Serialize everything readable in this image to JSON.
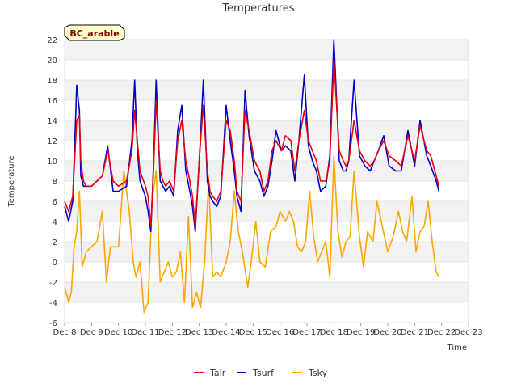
{
  "chart_data": {
    "type": "line",
    "title": "Temperatures",
    "xlabel": "Time",
    "ylabel": "Temperature",
    "site_label": "BC_arable",
    "xlim": [
      0,
      15
    ],
    "ylim": [
      -6,
      22
    ],
    "x_ticks": [
      {
        "x": 0,
        "label": "Dec 8"
      },
      {
        "x": 1,
        "label": "Dec 9"
      },
      {
        "x": 2,
        "label": "Dec 10"
      },
      {
        "x": 3,
        "label": "Dec 11"
      },
      {
        "x": 4,
        "label": "Dec 12"
      },
      {
        "x": 5,
        "label": "Dec 13"
      },
      {
        "x": 6,
        "label": "Dec 14"
      },
      {
        "x": 7,
        "label": "Dec 15"
      },
      {
        "x": 8,
        "label": "Dec 16"
      },
      {
        "x": 9,
        "label": "Dec 17"
      },
      {
        "x": 10,
        "label": "Dec 18"
      },
      {
        "x": 11,
        "label": "Dec 19"
      },
      {
        "x": 12,
        "label": "Dec 20"
      },
      {
        "x": 13,
        "label": "Dec 21"
      },
      {
        "x": 14,
        "label": "Dec 22"
      },
      {
        "x": 15,
        "label": "Dec 23"
      }
    ],
    "y_ticks": [
      -6,
      -4,
      -2,
      0,
      2,
      4,
      6,
      8,
      10,
      12,
      14,
      16,
      18,
      20,
      22
    ],
    "grid": "horizontal bands",
    "legend_position": "bottom",
    "series": [
      {
        "name": "Tair",
        "color": "#e8000b",
        "x": [
          0,
          0.15,
          0.3,
          0.45,
          0.55,
          0.6,
          0.7,
          0.8,
          1.0,
          1.2,
          1.4,
          1.6,
          1.8,
          2.0,
          2.3,
          2.5,
          2.6,
          2.7,
          2.8,
          3.0,
          3.1,
          3.2,
          3.3,
          3.4,
          3.55,
          3.65,
          3.75,
          3.9,
          4.05,
          4.2,
          4.35,
          4.5,
          4.65,
          4.75,
          4.85,
          5.05,
          5.15,
          5.3,
          5.4,
          5.5,
          5.65,
          5.8,
          6.0,
          6.15,
          6.3,
          6.4,
          6.55,
          6.7,
          6.85,
          7.05,
          7.25,
          7.4,
          7.55,
          7.7,
          7.85,
          8.05,
          8.2,
          8.4,
          8.55,
          8.7,
          8.9,
          9.05,
          9.2,
          9.35,
          9.5,
          9.7,
          9.85,
          10.0,
          10.2,
          10.35,
          10.45,
          10.55,
          10.75,
          10.95,
          11.15,
          11.35,
          11.5,
          11.65,
          11.85,
          12.05,
          12.3,
          12.5,
          12.75,
          13.0,
          13.2,
          13.45,
          13.6,
          13.8,
          13.9
        ],
        "y": [
          6.0,
          5.0,
          6.5,
          14.0,
          14.5,
          10.0,
          8.0,
          7.5,
          7.5,
          8.0,
          8.5,
          11.0,
          8.0,
          7.5,
          8.0,
          11.0,
          15.0,
          12.0,
          9.0,
          7.5,
          6.5,
          3.5,
          9.0,
          16.0,
          9.0,
          8.0,
          7.5,
          8.0,
          7.0,
          12.0,
          14.0,
          10.0,
          8.0,
          6.5,
          3.5,
          12.0,
          15.5,
          9.0,
          7.0,
          6.5,
          6.0,
          7.0,
          14.0,
          13.0,
          10.0,
          7.0,
          6.0,
          15.0,
          13.0,
          10.0,
          9.0,
          7.0,
          8.0,
          11.0,
          12.0,
          11.0,
          12.5,
          12.0,
          9.0,
          12.0,
          15.0,
          12.0,
          11.0,
          10.0,
          8.0,
          8.0,
          10.0,
          20.0,
          11.0,
          10.0,
          9.5,
          10.0,
          14.0,
          11.0,
          10.0,
          9.5,
          10.0,
          11.0,
          12.0,
          10.5,
          10.0,
          9.5,
          12.5,
          10.0,
          13.5,
          11.0,
          10.5,
          8.5,
          7.5
        ]
      },
      {
        "name": "Tsurf",
        "color": "#0000cc",
        "x": [
          0,
          0.15,
          0.3,
          0.45,
          0.55,
          0.6,
          0.7,
          0.8,
          1.0,
          1.2,
          1.4,
          1.6,
          1.8,
          2.0,
          2.3,
          2.5,
          2.6,
          2.7,
          2.8,
          3.0,
          3.1,
          3.2,
          3.3,
          3.4,
          3.55,
          3.65,
          3.75,
          3.9,
          4.05,
          4.2,
          4.35,
          4.5,
          4.65,
          4.75,
          4.85,
          5.05,
          5.15,
          5.3,
          5.4,
          5.5,
          5.65,
          5.8,
          6.0,
          6.15,
          6.3,
          6.4,
          6.55,
          6.7,
          6.85,
          7.05,
          7.25,
          7.4,
          7.55,
          7.7,
          7.85,
          8.05,
          8.2,
          8.4,
          8.55,
          8.7,
          8.9,
          9.05,
          9.2,
          9.35,
          9.5,
          9.7,
          9.85,
          10.0,
          10.2,
          10.35,
          10.45,
          10.55,
          10.75,
          10.95,
          11.15,
          11.35,
          11.5,
          11.65,
          11.85,
          12.05,
          12.3,
          12.5,
          12.75,
          13.0,
          13.2,
          13.45,
          13.6,
          13.8,
          13.9
        ],
        "y": [
          5.5,
          4.0,
          6.0,
          17.5,
          15.0,
          8.5,
          7.5,
          7.5,
          7.5,
          8.0,
          8.5,
          11.5,
          7.0,
          7.0,
          7.5,
          12.0,
          18.0,
          11.0,
          8.0,
          6.5,
          5.0,
          3.0,
          9.5,
          18.0,
          8.0,
          7.5,
          7.0,
          7.5,
          6.5,
          13.0,
          15.5,
          9.0,
          7.0,
          5.5,
          3.0,
          12.5,
          18.0,
          8.0,
          6.5,
          6.0,
          5.5,
          6.5,
          15.5,
          12.0,
          9.0,
          6.5,
          5.0,
          17.0,
          12.5,
          9.0,
          8.0,
          6.5,
          7.5,
          10.0,
          13.0,
          11.0,
          11.5,
          11.0,
          8.0,
          12.0,
          18.5,
          11.5,
          10.0,
          9.0,
          7.0,
          7.5,
          10.5,
          22.0,
          10.0,
          9.0,
          9.0,
          10.0,
          18.0,
          10.5,
          9.5,
          9.0,
          10.0,
          11.0,
          12.5,
          9.5,
          9.0,
          9.0,
          13.0,
          9.5,
          14.0,
          10.5,
          9.5,
          8.0,
          7.0
        ]
      },
      {
        "name": "Tsky",
        "color": "#ffa500",
        "x": [
          0,
          0.15,
          0.25,
          0.35,
          0.45,
          0.55,
          0.65,
          0.8,
          1.0,
          1.2,
          1.4,
          1.55,
          1.7,
          1.85,
          2.0,
          2.2,
          2.4,
          2.55,
          2.65,
          2.8,
          2.95,
          3.1,
          3.25,
          3.4,
          3.55,
          3.7,
          3.85,
          4.0,
          4.15,
          4.3,
          4.45,
          4.6,
          4.75,
          4.9,
          5.05,
          5.2,
          5.35,
          5.5,
          5.65,
          5.8,
          6.0,
          6.15,
          6.3,
          6.45,
          6.6,
          6.8,
          6.95,
          7.1,
          7.25,
          7.45,
          7.65,
          7.85,
          8.0,
          8.2,
          8.35,
          8.5,
          8.65,
          8.8,
          8.95,
          9.1,
          9.25,
          9.4,
          9.55,
          9.7,
          9.85,
          10.0,
          10.15,
          10.3,
          10.45,
          10.6,
          10.75,
          10.95,
          11.1,
          11.25,
          11.45,
          11.6,
          11.8,
          12.0,
          12.2,
          12.4,
          12.55,
          12.7,
          12.9,
          13.05,
          13.2,
          13.35,
          13.5,
          13.65,
          13.8,
          13.9
        ],
        "y": [
          -2.5,
          -4.0,
          -3.0,
          1.5,
          3.0,
          7.0,
          -0.5,
          1.0,
          1.5,
          2.0,
          5.0,
          -2.0,
          1.5,
          1.5,
          1.5,
          9.0,
          5.0,
          0.0,
          -1.5,
          0.0,
          -5.0,
          -4.0,
          6.0,
          9.0,
          -2.0,
          -1.0,
          0.0,
          -1.5,
          -1.0,
          1.0,
          -4.0,
          4.5,
          -4.5,
          -3.0,
          -4.5,
          0.0,
          8.0,
          -1.5,
          -1.0,
          -1.5,
          0.0,
          2.0,
          7.0,
          3.0,
          1.0,
          -2.5,
          0.5,
          4.0,
          0.0,
          -0.5,
          3.0,
          3.5,
          5.0,
          4.0,
          5.0,
          4.0,
          1.5,
          1.0,
          2.0,
          7.0,
          2.5,
          0.0,
          1.0,
          2.0,
          -1.5,
          10.5,
          3.0,
          0.5,
          2.0,
          2.5,
          9.0,
          2.5,
          -0.5,
          3.0,
          2.0,
          6.0,
          3.5,
          1.0,
          2.5,
          5.0,
          3.0,
          2.0,
          6.5,
          1.0,
          3.0,
          3.5,
          6.0,
          2.0,
          -1.0,
          -1.5
        ]
      }
    ]
  }
}
